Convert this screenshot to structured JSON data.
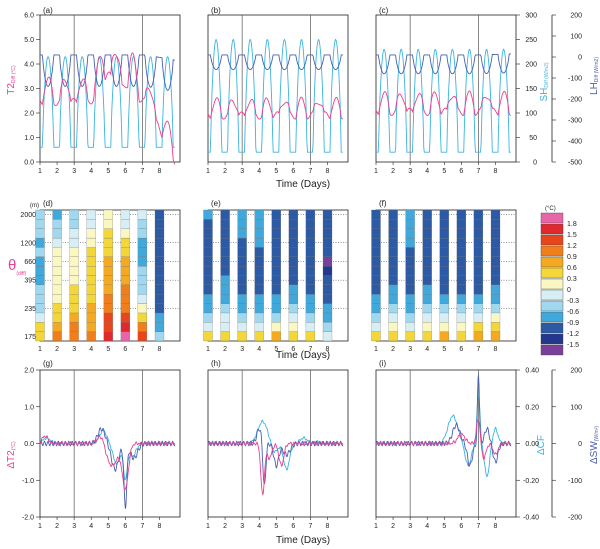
{
  "figure": {
    "xaxis_days": [
      "1",
      "2",
      "3",
      "4",
      "5",
      "6",
      "7",
      "8"
    ],
    "xlabel": "Time (Days)"
  },
  "colors": {
    "T2": "#e8418f",
    "SH": "#3ab4e1",
    "LH": "#4a5fb0",
    "dCF": "#3ab4e1",
    "dSW": "#4a5fb0",
    "axis": "#222222",
    "event_line": "#555555",
    "grid_dotted": "#333333"
  },
  "chart_data": [
    {
      "id": "row1",
      "type": "line",
      "panel_letters": [
        "(a)",
        "(b)",
        "(c)"
      ],
      "xlabel": "Time (Days)",
      "left_axis": {
        "label_main": "T2",
        "label_sub": "Diff (°C)",
        "ylim": [
          0,
          6
        ],
        "ticks": [
          "0.0",
          "1.0",
          "2.0",
          "3.0",
          "4.0",
          "5.0",
          "6.0"
        ]
      },
      "right_axis_1": {
        "label_main": "SH",
        "label_sub": "Diff (W/m2)",
        "ylim": [
          0,
          300
        ],
        "ticks": [
          "0",
          "50",
          "100",
          "150",
          "200",
          "250",
          "300"
        ]
      },
      "right_axis_2": {
        "label_main": "LH",
        "label_sub": "Diff (W/m2)",
        "ylim": [
          -500,
          200
        ],
        "ticks": [
          "-500",
          "-400",
          "-300",
          "-200",
          "-100",
          "0",
          "100",
          "200"
        ]
      },
      "event_lines_day": [
        3,
        7
      ],
      "series_params": [
        {
          "panel": "(a)",
          "T2": {
            "base": 2.9,
            "amp": 0.9,
            "bumps": [
              [
                5.0,
                1.8,
                0.6
              ],
              [
                6.2,
                1.2,
                0.5
              ]
            ],
            "tail_drop": 2.4
          },
          "SH": {
            "low": 30,
            "high": 215
          },
          "LH": {
            "low": -140,
            "high": 10,
            "tail": -190
          }
        },
        {
          "panel": "(b)",
          "T2": {
            "base": 2.2,
            "amp": 0.6,
            "bumps": [],
            "tail_drop": 0
          },
          "SH": {
            "low": 20,
            "high": 250
          },
          "LH": {
            "low": -60,
            "high": 10,
            "tail": -60
          }
        },
        {
          "panel": "(c)",
          "T2": {
            "base": 2.4,
            "amp": 0.7,
            "bumps": [],
            "tail_drop": 0
          },
          "SH": {
            "low": 20,
            "high": 230
          },
          "LH": {
            "low": -80,
            "high": 10,
            "tail": -70
          }
        }
      ]
    },
    {
      "id": "row2",
      "type": "heatmap",
      "panel_letters": [
        "(d)",
        "(e)",
        "(f)"
      ],
      "xlabel": "Time (Days)",
      "ylabel_main": "θ",
      "ylabel_sub": "(diff)",
      "y_unit": "(m)",
      "y_ticks": [
        "175",
        "235",
        "395",
        "660",
        "1200",
        "2000"
      ],
      "legend_unit": "(°C)",
      "legend_levels": [
        "1.8",
        "1.5",
        "1.2",
        "0.9",
        "0.6",
        "0.3",
        "0",
        "-0.3",
        "-0.6",
        "-0.9",
        "-1.2",
        "-1.5"
      ],
      "legend_colors": [
        "#e866a8",
        "#e0282f",
        "#e8451c",
        "#f07f1b",
        "#f3aa22",
        "#f3d63a",
        "#fbf7c2",
        "#d7eef5",
        "#9fd8ef",
        "#41a8dc",
        "#2c5aa5",
        "#22378d",
        "#7a3f9a"
      ],
      "levels_per_column": 14,
      "columns": {
        "(d)": [
          [
            0.5,
            0.3,
            -0.1,
            -0.4,
            -0.5,
            -0.6,
            -0.7,
            -0.8,
            -0.7,
            -0.6,
            -0.7,
            -0.6,
            -0.5,
            -0.5
          ],
          [
            1.0,
            0.8,
            0.5,
            0.4,
            0.2,
            0.1,
            0.0,
            0.0,
            0.1,
            0.0,
            -0.2,
            -0.4,
            -0.6,
            -0.7
          ],
          [
            1.1,
            0.9,
            0.7,
            0.5,
            0.4,
            0.3,
            0.2,
            0.1,
            0.0,
            0.0,
            -0.1,
            -0.3,
            -0.5,
            -0.6
          ],
          [
            1.0,
            0.8,
            0.7,
            0.6,
            0.5,
            0.5,
            0.4,
            0.4,
            0.3,
            0.3,
            0.2,
            0.1,
            -0.1,
            -0.2
          ],
          [
            1.7,
            1.4,
            1.2,
            1.0,
            0.9,
            0.8,
            0.7,
            0.6,
            0.6,
            0.5,
            0.5,
            0.4,
            0.2,
            0.1
          ],
          [
            1.9,
            1.6,
            1.3,
            1.1,
            1.0,
            0.9,
            0.8,
            0.7,
            0.6,
            0.5,
            0.3,
            0.1,
            -0.1,
            -0.2
          ],
          [
            1.2,
            0.9,
            0.4,
            0.1,
            -0.2,
            -0.4,
            -0.5,
            -0.6,
            -0.7,
            -0.8,
            -0.7,
            -0.6,
            -0.4,
            -0.3
          ],
          [
            -0.5,
            -0.7,
            -0.9,
            -1.0,
            -1.1,
            -1.1,
            -1.2,
            -1.2,
            -1.1,
            -1.0,
            -1.0,
            -1.0,
            -1.0,
            -1.0
          ]
        ],
        "(e)": [
          [
            0.4,
            -0.2,
            -0.5,
            -0.7,
            -0.9,
            -1.0,
            -1.0,
            -1.0,
            -1.0,
            -1.0,
            -1.0,
            -1.0,
            -1.0,
            -0.9
          ],
          [
            0.5,
            -0.1,
            -0.3,
            -0.5,
            -0.7,
            -0.8,
            -0.9,
            -1.0,
            -1.0,
            -1.0,
            -1.0,
            -1.0,
            -1.0,
            -1.0
          ],
          [
            0.3,
            -0.3,
            -0.6,
            -0.8,
            -0.9,
            -1.0,
            -1.0,
            -1.0,
            -1.0,
            -1.0,
            -1.0,
            -0.9,
            -0.9,
            -0.8
          ],
          [
            0.4,
            -0.2,
            -0.5,
            -0.7,
            -0.9,
            -1.0,
            -1.0,
            -1.0,
            -1.0,
            -1.0,
            -0.9,
            -0.9,
            -0.9,
            -0.9
          ],
          [
            0.6,
            0.0,
            -0.4,
            -0.7,
            -0.9,
            -1.0,
            -1.1,
            -1.1,
            -1.0,
            -1.0,
            -1.0,
            -1.0,
            -1.0,
            -1.0
          ],
          [
            0.5,
            0.1,
            -0.3,
            -0.6,
            -0.8,
            -0.9,
            -1.0,
            -1.0,
            -1.0,
            -1.0,
            -1.0,
            -1.0,
            -1.0,
            -1.0
          ],
          [
            0.3,
            -0.2,
            -0.5,
            -0.7,
            -0.9,
            -1.0,
            -1.1,
            -1.0,
            -1.0,
            -1.0,
            -1.0,
            -1.0,
            -1.0,
            -1.0
          ],
          [
            -0.2,
            -0.5,
            -0.8,
            -0.9,
            -1.0,
            -1.1,
            -1.2,
            -1.3,
            -1.6,
            -1.2,
            -1.1,
            -1.0,
            -1.0,
            -1.0
          ]
        ],
        "(f)": [
          [
            0.3,
            -0.2,
            -0.5,
            -0.8,
            -0.9,
            -1.0,
            -1.0,
            -1.0,
            -1.0,
            -1.0,
            -1.0,
            -1.0,
            -1.0,
            -1.0
          ],
          [
            0.4,
            0.1,
            -0.3,
            -0.6,
            -0.8,
            -0.9,
            -1.0,
            -1.1,
            -1.1,
            -1.0,
            -1.0,
            -1.0,
            -1.0,
            -1.0
          ],
          [
            0.3,
            -0.1,
            -0.4,
            -0.7,
            -0.9,
            -1.0,
            -1.0,
            -1.0,
            -1.0,
            -1.0,
            -0.9,
            -0.9,
            -0.9,
            -0.9
          ],
          [
            0.5,
            0.1,
            -0.3,
            -0.6,
            -0.8,
            -0.9,
            -1.0,
            -1.0,
            -1.0,
            -1.0,
            -1.0,
            -1.0,
            -1.0,
            -1.0
          ],
          [
            0.6,
            0.2,
            -0.2,
            -0.5,
            -0.8,
            -1.0,
            -1.0,
            -1.0,
            -1.0,
            -1.0,
            -1.0,
            -1.0,
            -1.0,
            -1.0
          ],
          [
            0.4,
            0.0,
            -0.3,
            -0.6,
            -0.9,
            -1.0,
            -1.1,
            -1.0,
            -1.0,
            -1.0,
            -1.0,
            -1.0,
            -1.0,
            -1.0
          ],
          [
            0.7,
            0.3,
            -0.2,
            -0.5,
            -0.8,
            -1.0,
            -1.0,
            -1.0,
            -1.0,
            -1.0,
            -1.0,
            -1.0,
            -1.0,
            -1.0
          ],
          [
            0.8,
            0.4,
            0.0,
            -0.4,
            -0.7,
            -0.9,
            -1.0,
            -1.0,
            -1.0,
            -1.0,
            -1.0,
            -1.0,
            -1.0,
            -1.0
          ]
        ]
      }
    },
    {
      "id": "row3",
      "type": "line",
      "panel_letters": [
        "(g)",
        "(h)",
        "(i)"
      ],
      "xlabel": "Time (Days)",
      "left_axis": {
        "label_main": "ΔT2",
        "label_sub": "(°C)",
        "ylim": [
          -2.0,
          2.0
        ],
        "ticks": [
          "-2.0",
          "-1.0",
          "0.0",
          "1.0",
          "2.0"
        ]
      },
      "right_axis_1": {
        "label_main": "ΔCF",
        "label_sub": "",
        "ylim": [
          -0.4,
          0.4
        ],
        "ticks": [
          "-0.40",
          "-0.20",
          "0.00",
          "0.20",
          "0.40"
        ]
      },
      "right_axis_2": {
        "label_main": "ΔSW",
        "label_sub": "(W/m²)",
        "ylim": [
          -200,
          200
        ],
        "ticks": [
          "-200",
          "-100",
          "0",
          "100",
          "200"
        ]
      },
      "event_lines_day": [
        3,
        7
      ],
      "series_params": [
        {
          "panel": "(g)",
          "T2": [
            [
              1.3,
              0.2,
              0.25
            ],
            [
              5.2,
              -0.6,
              0.5
            ],
            [
              6.0,
              -1.2,
              0.25
            ],
            [
              4.6,
              0.3,
              0.3
            ]
          ],
          "CF": [
            [
              1.4,
              0.03,
              0.3
            ],
            [
              4.7,
              0.07,
              0.3
            ],
            [
              5.5,
              -0.11,
              0.3
            ],
            [
              6.0,
              -0.18,
              0.15
            ],
            [
              6.4,
              -0.07,
              0.3
            ]
          ],
          "SW": [
            [
              4.6,
              40,
              0.3
            ],
            [
              5.4,
              -70,
              0.3
            ],
            [
              6.0,
              -170,
              0.12
            ],
            [
              6.5,
              -40,
              0.3
            ]
          ]
        },
        {
          "panel": "(h)",
          "T2": [
            [
              4.2,
              -1.4,
              0.15
            ],
            [
              4.6,
              -0.4,
              0.2
            ],
            [
              5.3,
              -0.6,
              0.2
            ]
          ],
          "CF": [
            [
              4.2,
              0.12,
              0.4
            ],
            [
              4.9,
              -0.05,
              0.25
            ],
            [
              5.6,
              -0.14,
              0.25
            ],
            [
              6.6,
              0.03,
              0.3
            ],
            [
              7.4,
              0.01,
              0.3
            ]
          ],
          "SW": [
            [
              4.0,
              40,
              0.2
            ],
            [
              4.3,
              -120,
              0.12
            ],
            [
              5.0,
              -60,
              0.2
            ],
            [
              5.6,
              -30,
              0.3
            ]
          ]
        },
        {
          "panel": "(i)",
          "T2": [
            [
              6.0,
              0.25,
              0.3
            ],
            [
              7.0,
              0.7,
              0.15
            ],
            [
              7.3,
              -0.4,
              0.2
            ],
            [
              8.0,
              -0.3,
              0.2
            ]
          ],
          "CF": [
            [
              5.5,
              0.15,
              0.4
            ],
            [
              6.4,
              -0.12,
              0.25
            ],
            [
              7.0,
              0.28,
              0.12
            ],
            [
              7.5,
              -0.18,
              0.2
            ],
            [
              8.0,
              0.08,
              0.2
            ]
          ],
          "SW": [
            [
              5.7,
              50,
              0.3
            ],
            [
              6.5,
              -60,
              0.2
            ],
            [
              7.0,
              190,
              0.08
            ],
            [
              7.5,
              40,
              0.2
            ],
            [
              8.0,
              -50,
              0.2
            ]
          ]
        }
      ]
    }
  ]
}
